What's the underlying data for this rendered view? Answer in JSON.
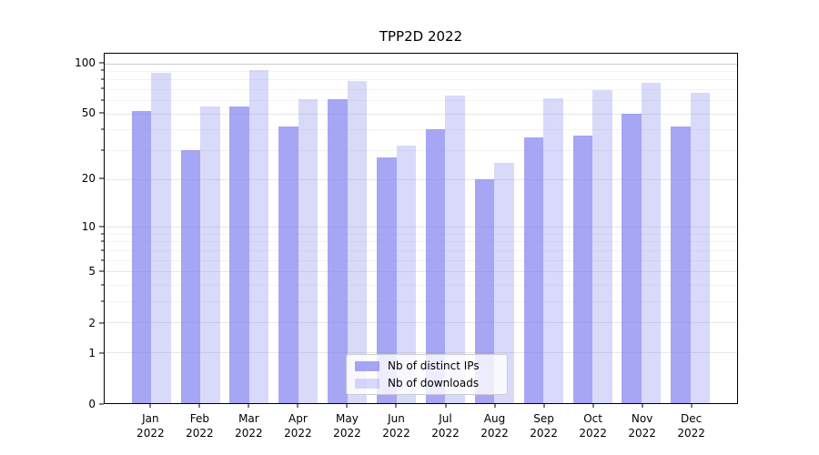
{
  "figure": {
    "background": "#ffffff",
    "plot_background": "#ffffff",
    "spine_color": "#000000"
  },
  "chart_data": {
    "type": "bar",
    "title": "TPP2D 2022",
    "categories": [
      "Jan 2022",
      "Feb 2022",
      "Mar 2022",
      "Apr 2022",
      "May 2022",
      "Jun 2022",
      "Jul 2022",
      "Aug 2022",
      "Sep 2022",
      "Oct 2022",
      "Nov 2022",
      "Dec 2022"
    ],
    "series": [
      {
        "name": "Nb of distinct IPs",
        "color": "rgba(128,128,240,0.7)",
        "values": [
          52,
          30,
          55,
          42,
          61,
          27,
          40,
          20,
          36,
          37,
          50,
          42
        ]
      },
      {
        "name": "Nb of downloads",
        "color": "rgba(128,128,240,0.3)",
        "values": [
          88,
          55,
          91,
          61,
          78,
          32,
          64,
          25,
          62,
          69,
          76,
          67
        ]
      }
    ],
    "xlabel": "",
    "ylabel": "",
    "yscale": "log1p",
    "ylim": [
      0,
      114
    ],
    "xlim": [
      -0.95,
      11.95
    ],
    "bar_width_units": 0.4,
    "yticks": [
      0,
      1,
      2,
      5,
      10,
      20,
      50,
      100
    ],
    "minor_yticks": [
      3,
      4,
      6,
      7,
      8,
      9,
      30,
      40,
      60,
      70,
      80,
      90
    ],
    "grid": "horizontal",
    "grid_emph_value": 100,
    "legend_position": "inside-bottom-center",
    "colors": {
      "grid_major": "#e7e7e7",
      "grid_minor": "#f3f3f3",
      "grid_emph": "#c9c9c9",
      "tick_text": "#000000"
    }
  }
}
